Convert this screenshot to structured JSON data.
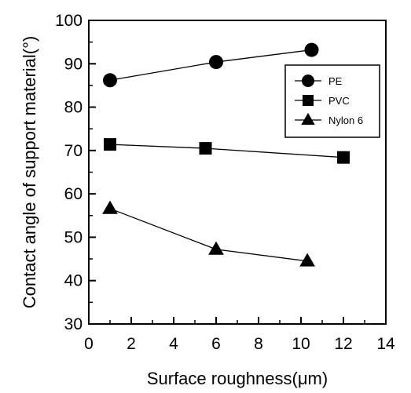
{
  "chart_data": {
    "type": "line",
    "title": "",
    "xlabel": "Surface roughness(μm)",
    "ylabel": "Contact angle of support material(°)",
    "xlim": [
      0,
      14
    ],
    "ylim": [
      30,
      100
    ],
    "x_ticks": [
      "0",
      "2",
      "4",
      "6",
      "8",
      "10",
      "12",
      "14"
    ],
    "y_ticks": [
      "30",
      "40",
      "50",
      "60",
      "70",
      "80",
      "90",
      "100"
    ],
    "grid": false,
    "legend_position": "top-right",
    "series": [
      {
        "name": "PE",
        "marker": "circle",
        "x": [
          1.0,
          6.0,
          10.5
        ],
        "y": [
          86.2,
          90.4,
          93.2
        ]
      },
      {
        "name": "PVC",
        "marker": "square",
        "x": [
          1.0,
          5.5,
          12.0
        ],
        "y": [
          71.4,
          70.5,
          68.4
        ]
      },
      {
        "name": "Nylon 6",
        "marker": "triangle",
        "x": [
          1.0,
          6.0,
          10.3
        ],
        "y": [
          56.6,
          47.2,
          44.5
        ]
      }
    ]
  }
}
